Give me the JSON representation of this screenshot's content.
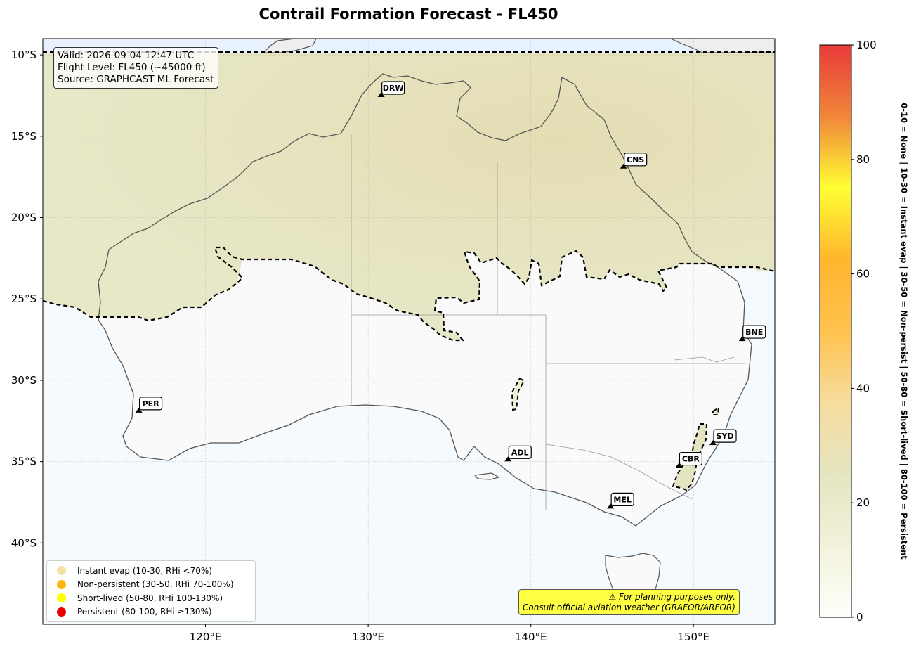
{
  "title": "Contrail Formation Forecast - FL450",
  "info": {
    "valid": "Valid: 2026-09-04 12:47 UTC",
    "flight_level": "Flight Level: FL450 (~45000 ft)",
    "source": "Source: GRAPHCAST ML Forecast"
  },
  "map": {
    "lon_range": [
      110,
      155
    ],
    "lat_range": [
      -45,
      -9
    ],
    "lat_ticks": [
      {
        "value": -10,
        "label": "10°S"
      },
      {
        "value": -15,
        "label": "15°S"
      },
      {
        "value": -20,
        "label": "20°S"
      },
      {
        "value": -25,
        "label": "25°S"
      },
      {
        "value": -30,
        "label": "30°S"
      },
      {
        "value": -35,
        "label": "35°S"
      },
      {
        "value": -40,
        "label": "40°S"
      }
    ],
    "lon_ticks": [
      {
        "value": 120,
        "label": "120°E"
      },
      {
        "value": 130,
        "label": "130°E"
      },
      {
        "value": 140,
        "label": "140°E"
      },
      {
        "value": 150,
        "label": "150°E"
      }
    ],
    "cities": [
      {
        "code": "DRW",
        "lon": 130.8,
        "lat": -12.5
      },
      {
        "code": "CNS",
        "lon": 145.7,
        "lat": -16.9
      },
      {
        "code": "BNE",
        "lon": 153.0,
        "lat": -27.5
      },
      {
        "code": "PER",
        "lon": 115.9,
        "lat": -31.9
      },
      {
        "code": "ADL",
        "lon": 138.6,
        "lat": -34.9
      },
      {
        "code": "SYD",
        "lon": 151.2,
        "lat": -33.9
      },
      {
        "code": "CBR",
        "lon": 149.1,
        "lat": -35.3
      },
      {
        "code": "MEL",
        "lon": 144.9,
        "lat": -37.8
      }
    ],
    "colors": {
      "ocean": "#f5faff",
      "land_none": "#fafafa",
      "instant_evap_fill": "#e6e7c4",
      "north_band": "#e8f2ff"
    }
  },
  "legend": {
    "items": [
      {
        "label": "Instant evap (10-30, RHi <70%)",
        "color": "#f1e2a0"
      },
      {
        "label": "Non-persistent (30-50, RHi 70-100%)",
        "color": "#ffb40f"
      },
      {
        "label": "Short-lived (50-80, RHi 100-130%)",
        "color": "#ffff00"
      },
      {
        "label": "Persistent (80-100, RHi ≥130%)",
        "color": "#e60000"
      }
    ]
  },
  "disclaimer": {
    "line1": "⚠ For planning purposes only.",
    "line2": "Consult official aviation weather (GRAFOR/ARFOR)"
  },
  "colorbar": {
    "min": 0,
    "max": 100,
    "ticks": [
      "0",
      "20",
      "40",
      "60",
      "80",
      "100"
    ],
    "label": "0-10 = None  |  10-30 = Instant evap  |  30-50 = Non-persist  |  50-80 = Short-lived  |  80-100 = Persistent",
    "stops": [
      "#fffffb",
      "#f2f2dc",
      "#e4e5c0",
      "#f6dc9e",
      "#ffc24e",
      "#ffb52e",
      "#ffff33",
      "#f1863a",
      "#e83a3a"
    ]
  }
}
